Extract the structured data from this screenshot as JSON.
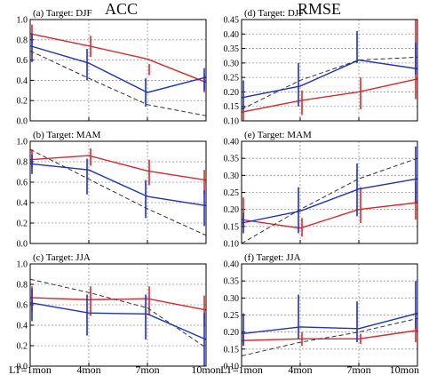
{
  "figure": {
    "col_titles": [
      "ACC",
      "RMSE"
    ],
    "xticks": [
      "LT=1mon",
      "4mon",
      "7mon",
      "10mon"
    ],
    "colors": {
      "red": "#e0262b",
      "blue": "#1f2fd0",
      "black": "#333333"
    }
  },
  "chart_data": [
    {
      "type": "line",
      "title": "(a) Target: DJF",
      "x": [
        "LT=1mon",
        "4mon",
        "7mon",
        "10mon"
      ],
      "ylim": [
        0,
        1.0
      ],
      "yticks": [
        "0.0",
        "0.2",
        "0.4",
        "0.6",
        "0.8",
        "1.0"
      ],
      "grid": true,
      "series": [
        {
          "color": "red",
          "style": "solid",
          "values": [
            0.86,
            0.74,
            0.61,
            0.38
          ],
          "errors": [
            [
              0.76,
              0.95
            ],
            [
              0.63,
              0.84
            ],
            [
              0.45,
              0.56
            ],
            [
              0.28,
              0.46
            ]
          ]
        },
        {
          "color": "blue",
          "style": "solid",
          "values": [
            0.74,
            0.57,
            0.28,
            0.43
          ],
          "errors": [
            [
              0.58,
              0.86
            ],
            [
              0.4,
              0.71
            ],
            [
              0.14,
              0.42
            ],
            [
              0.3,
              0.52
            ]
          ]
        },
        {
          "color": "black",
          "style": "dashed",
          "values": [
            0.69,
            0.42,
            0.16,
            0.05
          ]
        }
      ]
    },
    {
      "type": "line",
      "title": "(d) Target: DJF",
      "x": [
        "LT=1mon",
        "4mon",
        "7mon",
        "10mon"
      ],
      "ylim": [
        0.1,
        0.45
      ],
      "yticks": [
        "0.10",
        "0.15",
        "0.20",
        "0.25",
        "0.30",
        "0.35",
        "0.40",
        "0.45"
      ],
      "grid": true,
      "series": [
        {
          "color": "red",
          "style": "solid",
          "values": [
            0.13,
            0.17,
            0.2,
            0.245
          ],
          "errors": [
            [
              0.1,
              0.145
            ],
            [
              0.12,
              0.205
            ],
            [
              0.14,
              0.25
            ],
            [
              0.175,
              0.465
            ]
          ]
        },
        {
          "color": "blue",
          "style": "solid",
          "values": [
            0.18,
            0.22,
            0.31,
            0.28
          ],
          "errors": [
            [
              0.14,
              0.24
            ],
            [
              0.15,
              0.3
            ],
            [
              0.3,
              0.41
            ],
            [
              0.26,
              0.37
            ]
          ]
        },
        {
          "color": "black",
          "style": "dashed",
          "values": [
            0.14,
            0.24,
            0.31,
            0.32
          ]
        }
      ]
    },
    {
      "type": "line",
      "title": "(b) Target: MAM",
      "x": [
        "LT=1mon",
        "4mon",
        "7mon",
        "10mon"
      ],
      "ylim": [
        0,
        1.0
      ],
      "yticks": [
        "0.0",
        "0.2",
        "0.4",
        "0.6",
        "0.8",
        "1.0"
      ],
      "grid": true,
      "series": [
        {
          "color": "red",
          "style": "solid",
          "values": [
            0.82,
            0.86,
            0.71,
            0.62
          ],
          "errors": [
            [
              0.74,
              0.92
            ],
            [
              0.76,
              0.93
            ],
            [
              0.57,
              0.82
            ],
            [
              0.48,
              0.72
            ]
          ]
        },
        {
          "color": "blue",
          "style": "solid",
          "values": [
            0.78,
            0.72,
            0.46,
            0.37
          ],
          "errors": [
            [
              0.68,
              0.87
            ],
            [
              0.48,
              0.83
            ],
            [
              0.25,
              0.62
            ],
            [
              0.17,
              0.52
            ]
          ]
        },
        {
          "color": "black",
          "style": "dashed",
          "values": [
            0.92,
            0.63,
            0.34,
            0.08
          ]
        }
      ]
    },
    {
      "type": "line",
      "title": "(e) Target: MAM",
      "x": [
        "LT=1mon",
        "4mon",
        "7mon",
        "10mon"
      ],
      "ylim": [
        0.1,
        0.4
      ],
      "yticks": [
        "0.10",
        "0.15",
        "0.20",
        "0.25",
        "0.30",
        "0.35",
        "0.40"
      ],
      "grid": true,
      "series": [
        {
          "color": "red",
          "style": "solid",
          "values": [
            0.17,
            0.145,
            0.2,
            0.22
          ],
          "errors": [
            [
              0.15,
              0.235
            ],
            [
              0.12,
              0.175
            ],
            [
              0.16,
              0.265
            ],
            [
              0.17,
              0.28
            ]
          ]
        },
        {
          "color": "blue",
          "style": "solid",
          "values": [
            0.16,
            0.195,
            0.26,
            0.29
          ],
          "errors": [
            [
              0.13,
              0.19
            ],
            [
              0.13,
              0.265
            ],
            [
              0.18,
              0.335
            ],
            [
              0.22,
              0.385
            ]
          ]
        },
        {
          "color": "black",
          "style": "dashed",
          "values": [
            0.1,
            0.2,
            0.29,
            0.35
          ]
        }
      ]
    },
    {
      "type": "line",
      "title": "(c) Target: JJA",
      "x": [
        "LT=1mon",
        "4mon",
        "7mon",
        "10mon"
      ],
      "ylim": [
        0,
        1.0
      ],
      "yticks": [
        "0.0",
        "0.2",
        "0.4",
        "0.6",
        "0.8",
        "1.0"
      ],
      "grid": true,
      "series": [
        {
          "color": "red",
          "style": "solid",
          "values": [
            0.67,
            0.65,
            0.66,
            0.55
          ],
          "errors": [
            [
              0.54,
              0.78
            ],
            [
              0.49,
              0.78
            ],
            [
              0.5,
              0.78
            ],
            [
              0.38,
              0.69
            ]
          ]
        },
        {
          "color": "blue",
          "style": "solid",
          "values": [
            0.62,
            0.52,
            0.51,
            0.26
          ],
          "errors": [
            [
              0.44,
              0.76
            ],
            [
              0.3,
              0.7
            ],
            [
              0.26,
              0.7
            ],
            [
              0.0,
              0.52
            ]
          ]
        },
        {
          "color": "black",
          "style": "dashed",
          "values": [
            0.85,
            0.72,
            0.57,
            0.18
          ]
        }
      ]
    },
    {
      "type": "line",
      "title": "(f) Target: JJA",
      "x": [
        "LT=1mon",
        "4mon",
        "7mon",
        "10mon"
      ],
      "ylim": [
        0.1,
        0.4
      ],
      "yticks": [
        "0.10",
        "0.15",
        "0.20",
        "0.25",
        "0.30",
        "0.35",
        "0.40"
      ],
      "grid": true,
      "series": [
        {
          "color": "red",
          "style": "solid",
          "values": [
            0.175,
            0.18,
            0.18,
            0.205
          ],
          "errors": [
            [
              0.16,
              0.19
            ],
            [
              0.16,
              0.2
            ],
            [
              0.165,
              0.195
            ],
            [
              0.17,
              0.24
            ]
          ]
        },
        {
          "color": "blue",
          "style": "solid",
          "values": [
            0.195,
            0.215,
            0.21,
            0.255
          ],
          "errors": [
            [
              0.16,
              0.255
            ],
            [
              0.18,
              0.31
            ],
            [
              0.17,
              0.29
            ],
            [
              0.21,
              0.35
            ]
          ]
        },
        {
          "color": "black",
          "style": "dashed",
          "values": [
            0.13,
            0.17,
            0.2,
            0.24
          ]
        }
      ]
    }
  ]
}
